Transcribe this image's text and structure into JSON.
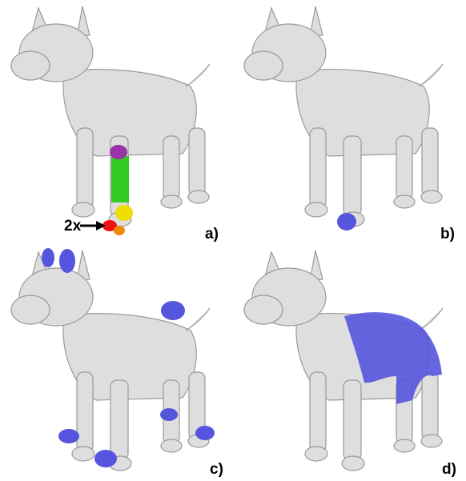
{
  "panels": [
    {
      "label": "a)",
      "annotation": "2x"
    },
    {
      "label": "b)"
    },
    {
      "label": "c)"
    },
    {
      "label": "d)"
    }
  ]
}
